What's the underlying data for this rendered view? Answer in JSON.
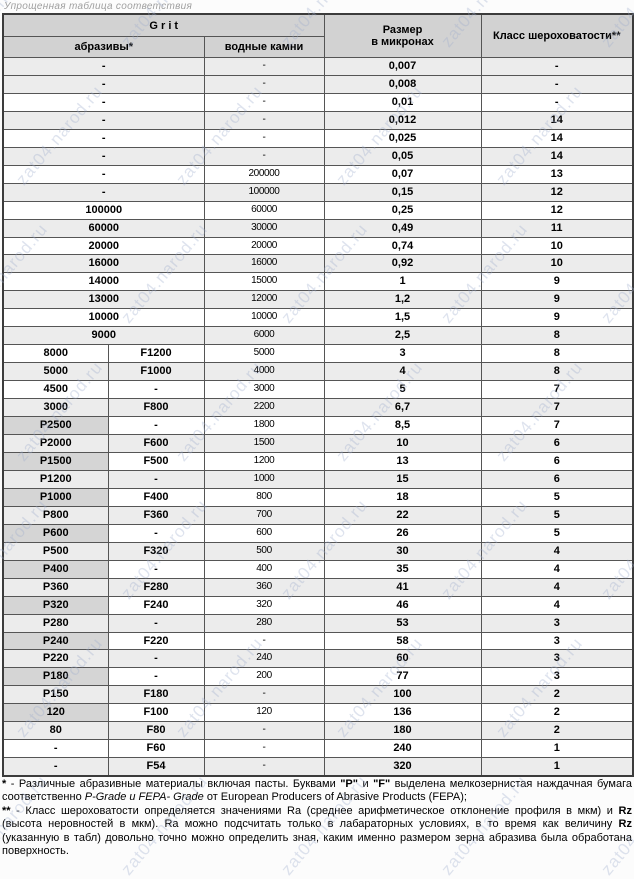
{
  "page_title": "Упрощенная таблица соответствия",
  "watermark": {
    "text": "zat04.narod.ru"
  },
  "colors": {
    "header_bg": "#d2d2d2",
    "shaded_row_bg": "#ececec",
    "pcell_bg": "#d5d5d5",
    "border": "#555555",
    "watermark": "#9eaccc"
  },
  "table": {
    "header": {
      "grit": "G r i t",
      "abrasives": "абразивы*",
      "waterstones": "водные камни",
      "size_microns": "Размер\nв микронах",
      "roughness_class": "Класс шероховатости**"
    },
    "rows": [
      {
        "abrasive": "-",
        "fepa": null,
        "waterstone": "-",
        "size": "0,007",
        "roughness": "-",
        "shaded": true,
        "pcell": false
      },
      {
        "abrasive": "-",
        "fepa": null,
        "waterstone": "-",
        "size": "0,008",
        "roughness": "-",
        "shaded": true,
        "pcell": false
      },
      {
        "abrasive": "-",
        "fepa": null,
        "waterstone": "-",
        "size": "0,01",
        "roughness": "-",
        "shaded": false,
        "pcell": false
      },
      {
        "abrasive": "-",
        "fepa": null,
        "waterstone": "-",
        "size": "0,012",
        "roughness": "14",
        "shaded": true,
        "pcell": false
      },
      {
        "abrasive": "-",
        "fepa": null,
        "waterstone": "-",
        "size": "0,025",
        "roughness": "14",
        "shaded": false,
        "pcell": false
      },
      {
        "abrasive": "-",
        "fepa": null,
        "waterstone": "-",
        "size": "0,05",
        "roughness": "14",
        "shaded": true,
        "pcell": false
      },
      {
        "abrasive": "-",
        "fepa": null,
        "waterstone": "200000",
        "size": "0,07",
        "roughness": "13",
        "shaded": false,
        "pcell": false
      },
      {
        "abrasive": "-",
        "fepa": null,
        "waterstone": "100000",
        "size": "0,15",
        "roughness": "12",
        "shaded": true,
        "pcell": false
      },
      {
        "abrasive": "100000",
        "fepa": null,
        "waterstone": "60000",
        "size": "0,25",
        "roughness": "12",
        "shaded": false,
        "pcell": false
      },
      {
        "abrasive": "60000",
        "fepa": null,
        "waterstone": "30000",
        "size": "0,49",
        "roughness": "11",
        "shaded": true,
        "pcell": false
      },
      {
        "abrasive": "20000",
        "fepa": null,
        "waterstone": "20000",
        "size": "0,74",
        "roughness": "10",
        "shaded": false,
        "pcell": false
      },
      {
        "abrasive": "16000",
        "fepa": null,
        "waterstone": "16000",
        "size": "0,92",
        "roughness": "10",
        "shaded": true,
        "pcell": false
      },
      {
        "abrasive": "14000",
        "fepa": null,
        "waterstone": "15000",
        "size": "1",
        "roughness": "9",
        "shaded": false,
        "pcell": false
      },
      {
        "abrasive": "13000",
        "fepa": null,
        "waterstone": "12000",
        "size": "1,2",
        "roughness": "9",
        "shaded": true,
        "pcell": false
      },
      {
        "abrasive": "10000",
        "fepa": null,
        "waterstone": "10000",
        "size": "1,5",
        "roughness": "9",
        "shaded": false,
        "pcell": false
      },
      {
        "abrasive": "9000",
        "fepa": null,
        "waterstone": "6000",
        "size": "2,5",
        "roughness": "8",
        "shaded": true,
        "pcell": false
      },
      {
        "abrasive": "8000",
        "fepa": "F1200",
        "waterstone": "5000",
        "size": "3",
        "roughness": "8",
        "shaded": false,
        "pcell": false
      },
      {
        "abrasive": "5000",
        "fepa": "F1000",
        "waterstone": "4000",
        "size": "4",
        "roughness": "8",
        "shaded": true,
        "pcell": false
      },
      {
        "abrasive": "4500",
        "fepa": "-",
        "waterstone": "3000",
        "size": "5",
        "roughness": "7",
        "shaded": false,
        "pcell": false
      },
      {
        "abrasive": "3000",
        "fepa": "F800",
        "waterstone": "2200",
        "size": "6,7",
        "roughness": "7",
        "shaded": true,
        "pcell": false
      },
      {
        "abrasive": "P2500",
        "fepa": "-",
        "waterstone": "1800",
        "size": "8,5",
        "roughness": "7",
        "shaded": false,
        "pcell": true
      },
      {
        "abrasive": "P2000",
        "fepa": "F600",
        "waterstone": "1500",
        "size": "10",
        "roughness": "6",
        "shaded": true,
        "pcell": true
      },
      {
        "abrasive": "P1500",
        "fepa": "F500",
        "waterstone": "1200",
        "size": "13",
        "roughness": "6",
        "shaded": false,
        "pcell": true
      },
      {
        "abrasive": "P1200",
        "fepa": "-",
        "waterstone": "1000",
        "size": "15",
        "roughness": "6",
        "shaded": true,
        "pcell": true
      },
      {
        "abrasive": "P1000",
        "fepa": "F400",
        "waterstone": "800",
        "size": "18",
        "roughness": "5",
        "shaded": false,
        "pcell": true
      },
      {
        "abrasive": "P800",
        "fepa": "F360",
        "waterstone": "700",
        "size": "22",
        "roughness": "5",
        "shaded": true,
        "pcell": true
      },
      {
        "abrasive": "P600",
        "fepa": "-",
        "waterstone": "600",
        "size": "26",
        "roughness": "5",
        "shaded": false,
        "pcell": true
      },
      {
        "abrasive": "P500",
        "fepa": "F320",
        "waterstone": "500",
        "size": "30",
        "roughness": "4",
        "shaded": true,
        "pcell": true
      },
      {
        "abrasive": "P400",
        "fepa": "-",
        "waterstone": "400",
        "size": "35",
        "roughness": "4",
        "shaded": false,
        "pcell": true
      },
      {
        "abrasive": "P360",
        "fepa": "F280",
        "waterstone": "360",
        "size": "41",
        "roughness": "4",
        "shaded": true,
        "pcell": true
      },
      {
        "abrasive": "P320",
        "fepa": "F240",
        "waterstone": "320",
        "size": "46",
        "roughness": "4",
        "shaded": false,
        "pcell": true
      },
      {
        "abrasive": "P280",
        "fepa": "-",
        "waterstone": "280",
        "size": "53",
        "roughness": "3",
        "shaded": true,
        "pcell": true
      },
      {
        "abrasive": "P240",
        "fepa": "F220",
        "waterstone": "-",
        "size": "58",
        "roughness": "3",
        "shaded": false,
        "pcell": true
      },
      {
        "abrasive": "P220",
        "fepa": "-",
        "waterstone": "240",
        "size": "60",
        "roughness": "3",
        "shaded": true,
        "pcell": true
      },
      {
        "abrasive": "P180",
        "fepa": "-",
        "waterstone": "200",
        "size": "77",
        "roughness": "3",
        "shaded": false,
        "pcell": true
      },
      {
        "abrasive": "P150",
        "fepa": "F180",
        "waterstone": "-",
        "size": "100",
        "roughness": "2",
        "shaded": true,
        "pcell": true
      },
      {
        "abrasive": "120",
        "fepa": "F100",
        "waterstone": "120",
        "size": "136",
        "roughness": "2",
        "shaded": false,
        "pcell": true
      },
      {
        "abrasive": "80",
        "fepa": "F80",
        "waterstone": "-",
        "size": "180",
        "roughness": "2",
        "shaded": true,
        "pcell": true
      },
      {
        "abrasive": "-",
        "fepa": "F60",
        "waterstone": "-",
        "size": "240",
        "roughness": "1",
        "shaded": false,
        "pcell": false
      },
      {
        "abrasive": "-",
        "fepa": "F54",
        "waterstone": "-",
        "size": "320",
        "roughness": "1",
        "shaded": true,
        "pcell": false
      }
    ]
  },
  "footnotes": [
    [
      {
        "t": "* ",
        "b": true
      },
      {
        "t": "-  Различные  абразивные  материалы  включая  пасты.  Буквами  "
      },
      {
        "t": "\"P\"",
        "b": true
      },
      {
        "t": "  и  "
      },
      {
        "t": "\"F\"",
        "b": true
      },
      {
        "t": "  выделена  мелкозернистая  наждачная  бумага соответственно "
      },
      {
        "t": "P-Grade и FEPA- Grade",
        "i": true
      },
      {
        "t": " от European Producers of Abrasive Products (FEPA);"
      }
    ],
    [
      {
        "t": "** ",
        "b": true
      },
      {
        "t": "-  Класс  шероховатости  определяется  значениями  Ra  (среднее  арифметическое  отклонение  профиля  в  мкм)  и  "
      },
      {
        "t": "Rz",
        "b": true
      },
      {
        "t": "  (высота неровностей в мкм). Ra можно подсчитать только в лабараторных условиях, в то время как величину "
      },
      {
        "t": "Rz",
        "b": true
      },
      {
        "t": " (указанную в табл) довольно точно можно определить зная, каким именно размером зерна абразива была обработана поверхность."
      }
    ]
  ]
}
